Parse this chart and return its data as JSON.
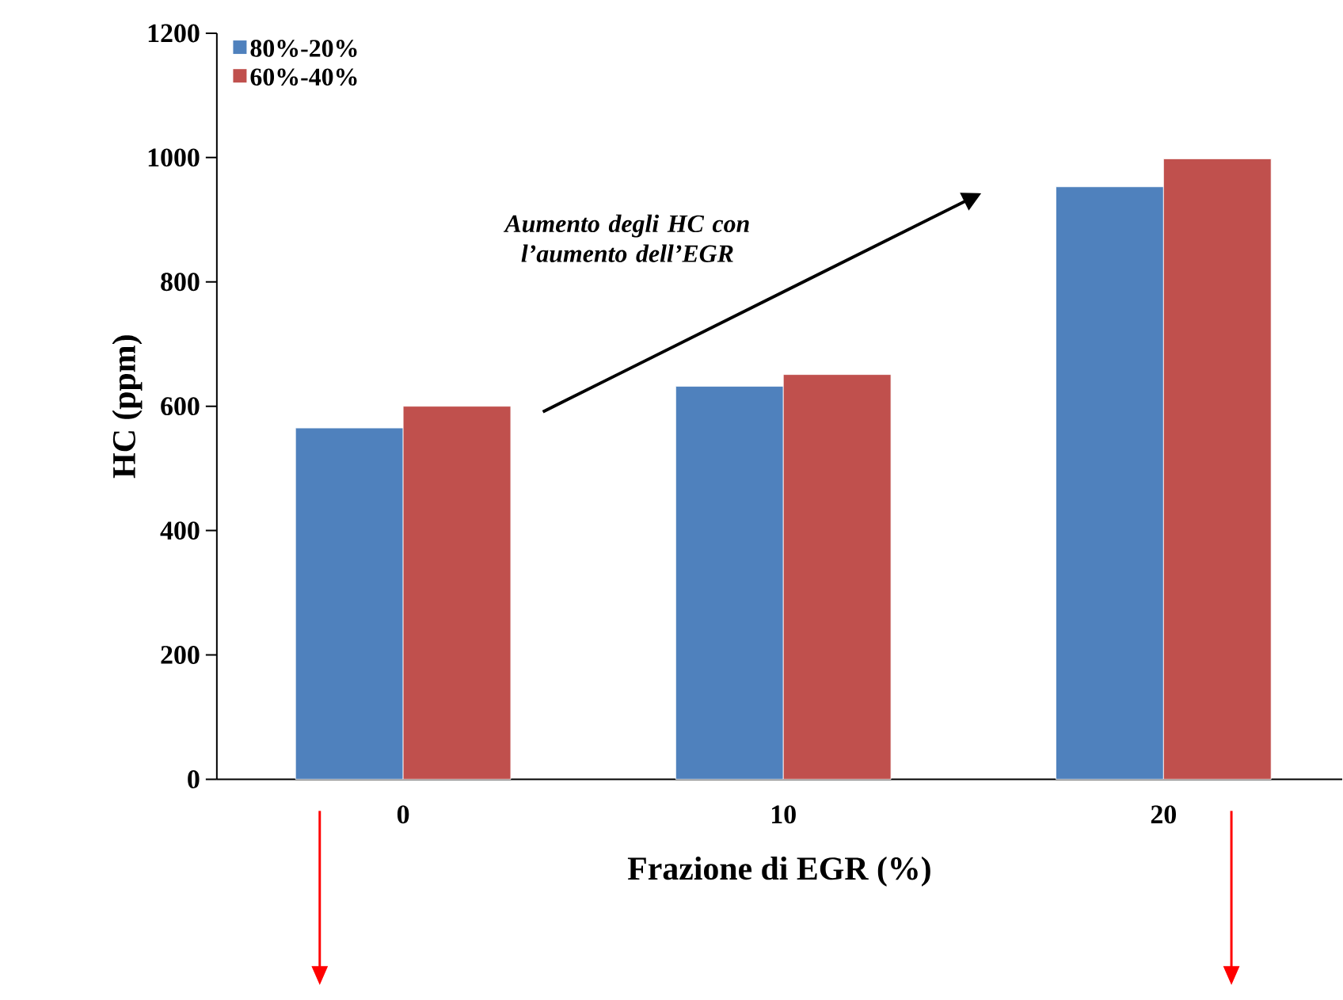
{
  "chart_data": {
    "type": "bar",
    "xlabel": "Frazione di EGR (%)",
    "ylabel": "HC (ppm)",
    "categories": [
      "0",
      "10",
      "20"
    ],
    "series": [
      {
        "name": "80%-20%",
        "color": "#4f81bd",
        "values": [
          565,
          632,
          953
        ]
      },
      {
        "name": "60%-40%",
        "color": "#c0504d",
        "values": [
          600,
          651,
          998
        ]
      }
    ],
    "ylim": [
      0,
      1200
    ],
    "yticks": [
      0,
      200,
      400,
      600,
      800,
      1000,
      1200
    ],
    "grid": false,
    "legend": "top left",
    "annotations": [
      "Aumento degli HC con l’aumento dell’EGR"
    ]
  }
}
